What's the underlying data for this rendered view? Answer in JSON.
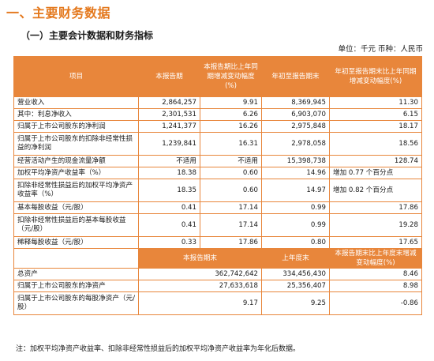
{
  "title": "一、主要财务数据",
  "subtitle": "（一）主要会计数据和财务指标",
  "unit_line": "单位：千元   币种：人民币",
  "headers": {
    "item": "项目",
    "current_period": "本报告期",
    "change_period": "本报告期比上年同期增减变动幅度(%)",
    "ytd": "年初至报告期末",
    "change_ytd": "年初至报告期末比上年同期增减变动幅度(%)"
  },
  "rows": [
    {
      "item": "营业收入",
      "current": "2,864,257",
      "change": "9.91",
      "ytd": "8,369,945",
      "change_ytd": "11.30"
    },
    {
      "item": "其中：利息净收入",
      "current": "2,301,531",
      "change": "6.26",
      "ytd": "6,903,070",
      "change_ytd": "6.15"
    },
    {
      "item": "归属于上市公司股东的净利润",
      "current": "1,241,377",
      "change": "16.26",
      "ytd": "2,975,848",
      "change_ytd": "18.17"
    },
    {
      "item": "归属于上市公司股东的扣除非经常性损益的净利润",
      "current": "1,239,841",
      "change": "16.31",
      "ytd": "2,978,058",
      "change_ytd": "18.56"
    },
    {
      "item": "经营活动产生的现金流量净额",
      "current": "不适用",
      "change": "不适用",
      "ytd": "15,398,738",
      "change_ytd": "128.74"
    },
    {
      "item": "加权平均净资产收益率（%）",
      "current": "18.38",
      "change": "0.60",
      "ytd": "14.96",
      "change_ytd": "增加 0.77 个百分点"
    },
    {
      "item": "扣除非经常性损益后的加权平均净资产收益率（%）",
      "current": "18.35",
      "change": "0.60",
      "ytd": "14.97",
      "change_ytd": "增加 0.82 个百分点"
    },
    {
      "item": "基本每股收益（元/股）",
      "current": "0.41",
      "change": "17.14",
      "ytd": "0.99",
      "change_ytd": "17.86"
    },
    {
      "item": "扣除非经常性损益后的基本每股收益（元/股）",
      "current": "0.41",
      "change": "17.14",
      "ytd": "0.99",
      "change_ytd": "19.28"
    },
    {
      "item": "稀释每股收益（元/股）",
      "current": "0.33",
      "change": "17.86",
      "ytd": "0.80",
      "change_ytd": "17.65"
    }
  ],
  "headers2": {
    "period_end": "本报告期末",
    "prev_year_end": "上年度末",
    "change": "本报告期末比上年度末增减变动幅度(%)"
  },
  "rows2": [
    {
      "item": "总资产",
      "period_end": "362,742,642",
      "prev": "334,456,430",
      "change": "8.46"
    },
    {
      "item": "归属于上市公司股东的净资产",
      "period_end": "27,633,618",
      "prev": "25,356,407",
      "change": "8.98"
    },
    {
      "item": "归属于上市公司股东的每股净资产（元/股）",
      "period_end": "9.17",
      "prev": "9.25",
      "change": "-0.86"
    }
  ],
  "note": "注：加权平均净资产收益率、扣除非经常性损益后的加权平均净资产收益率为年化后数据。"
}
